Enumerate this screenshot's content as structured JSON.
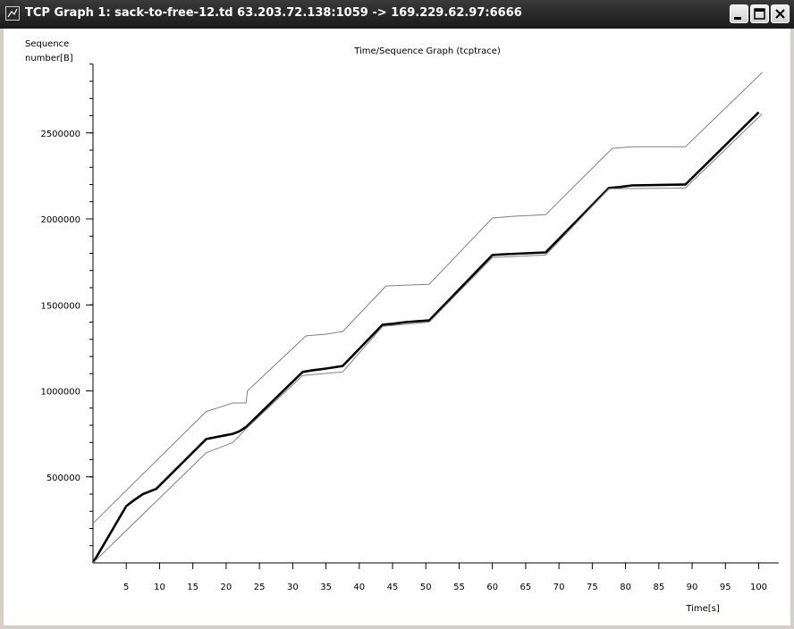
{
  "window": {
    "title": "TCP Graph 1: sack-to-free-12.td 63.203.72.138:1059 -> 169.229.62.97:6666",
    "icon": "tcp-graph-icon",
    "controls": [
      "minimize-icon",
      "maximize-icon",
      "close-icon"
    ]
  },
  "graph": {
    "title": "Time/Sequence Graph (tcptrace)",
    "ylabel_line1": "Sequence",
    "ylabel_line2": "number[B]",
    "xlabel": "Time[s]"
  },
  "chart_data": {
    "type": "line",
    "xlabel": "Time[s]",
    "ylabel": "Sequence number[B]",
    "xlim": [
      0,
      103
    ],
    "ylim": [
      0,
      2900000
    ],
    "x_ticks": [
      5,
      10,
      15,
      20,
      25,
      30,
      35,
      40,
      45,
      50,
      55,
      60,
      65,
      70,
      75,
      80,
      85,
      90,
      95,
      100
    ],
    "y_ticks": [
      500000,
      1000000,
      1500000,
      2000000,
      2500000
    ],
    "y_minor_step": 100000,
    "grid": false,
    "series": [
      {
        "role": "receive window advertised",
        "color": "#808080",
        "x": [
          0,
          17,
          21,
          23,
          23.2,
          32,
          35,
          37.5,
          44,
          47,
          50.5,
          60,
          63,
          68,
          78,
          81,
          89,
          100.5
        ],
        "y": [
          230000,
          880000,
          930000,
          930000,
          1000000,
          1320000,
          1330000,
          1345000,
          1610000,
          1615000,
          1620000,
          2005000,
          2015000,
          2025000,
          2410000,
          2420000,
          2420000,
          2850000
        ]
      },
      {
        "role": "sent segments",
        "color": "#000000",
        "x": [
          0,
          5,
          6,
          7.5,
          9.5,
          17,
          21,
          22,
          23,
          31.5,
          33,
          35,
          37.5,
          43.5,
          45,
          47,
          50.5,
          60,
          62,
          65,
          68,
          77.5,
          79,
          81,
          89,
          100
        ],
        "y": [
          0,
          330000,
          360000,
          400000,
          430000,
          720000,
          750000,
          765000,
          790000,
          1110000,
          1120000,
          1130000,
          1145000,
          1385000,
          1390000,
          1400000,
          1410000,
          1790000,
          1795000,
          1800000,
          1805000,
          2180000,
          2185000,
          2195000,
          2200000,
          2620000
        ]
      },
      {
        "role": "acknowledged",
        "color": "#808080",
        "x": [
          0,
          17,
          21,
          23,
          31.5,
          37.5,
          43.5,
          50.5,
          60,
          68,
          77.5,
          89,
          100.5
        ],
        "y": [
          0,
          640000,
          700000,
          780000,
          1090000,
          1110000,
          1375000,
          1400000,
          1775000,
          1790000,
          2175000,
          2180000,
          2610000
        ]
      }
    ]
  }
}
